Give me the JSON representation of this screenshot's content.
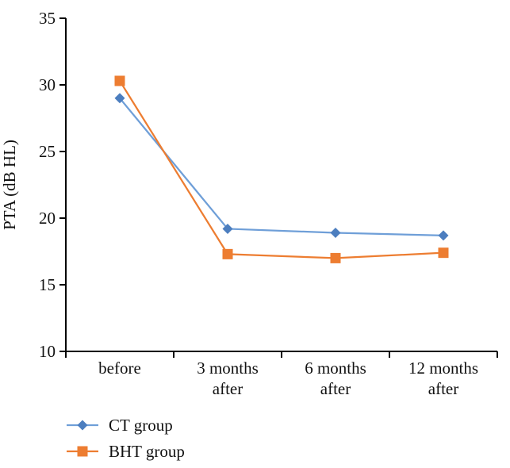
{
  "figure": {
    "background": "#ffffff",
    "text_color": "#111111"
  },
  "chart_data": {
    "type": "line",
    "categories": [
      "before",
      "3 months\nafter",
      "6 months\nafter",
      "12 months\nafter"
    ],
    "series": [
      {
        "name": "CT group",
        "values": [
          29.0,
          19.2,
          18.9,
          18.7
        ],
        "line_color": "#6F9FD8",
        "marker_color": "#4C7EBF",
        "marker": "diamond"
      },
      {
        "name": "BHT group",
        "values": [
          30.3,
          17.3,
          17.0,
          17.4
        ],
        "line_color": "#ED7D31",
        "marker_color": "#ED7D31",
        "marker": "square"
      }
    ],
    "title": "",
    "xlabel": "",
    "ylabel": "PTA (dB HL)",
    "ylim": [
      10,
      35
    ],
    "yticks": [
      35,
      30,
      25,
      20,
      15,
      10
    ],
    "grid": false,
    "legend_position": "bottom-left",
    "axis_color": "#000000"
  }
}
